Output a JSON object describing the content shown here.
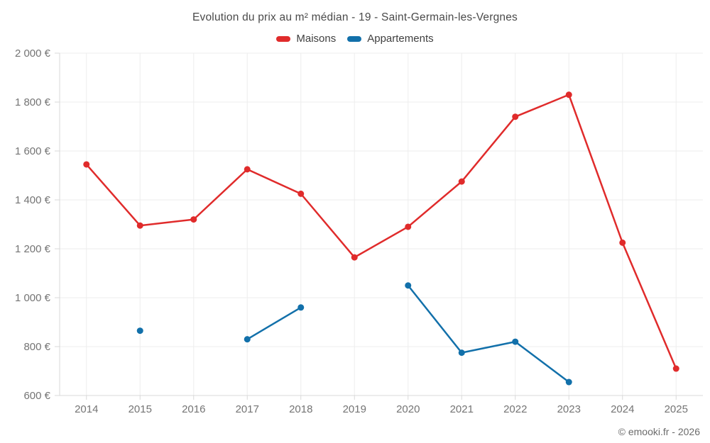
{
  "chart": {
    "title": "Evolution du prix au m² médian - 19 - Saint-Germain-les-Vergnes"
  },
  "footer": {
    "copyright": "© emooki.fr - 2026"
  },
  "chart_data": {
    "type": "line",
    "title": "Evolution du prix au m² médian - 19 - Saint-Germain-les-Vergnes",
    "x": [
      "2014",
      "2015",
      "2016",
      "2017",
      "2018",
      "2019",
      "2020",
      "2021",
      "2022",
      "2023",
      "2024",
      "2025"
    ],
    "series": [
      {
        "name": "Maisons",
        "color": "#e02b2b",
        "values": [
          1545,
          1295,
          1320,
          1525,
          1425,
          1165,
          1290,
          1475,
          1740,
          1830,
          1225,
          710
        ]
      },
      {
        "name": "Appartements",
        "color": "#1270aa",
        "values": [
          null,
          865,
          null,
          830,
          960,
          null,
          1050,
          775,
          820,
          655,
          null,
          null
        ]
      }
    ],
    "xlabel": "",
    "ylabel": "",
    "ylim": [
      600,
      2000
    ],
    "yticks": [
      600,
      800,
      1000,
      1200,
      1400,
      1600,
      1800,
      2000
    ],
    "ytick_labels": [
      "600 €",
      "800 €",
      "1 000 €",
      "1 200 €",
      "1 400 €",
      "1 600 €",
      "1 800 €",
      "2 000 €"
    ],
    "grid": true,
    "legend_position": "top"
  }
}
